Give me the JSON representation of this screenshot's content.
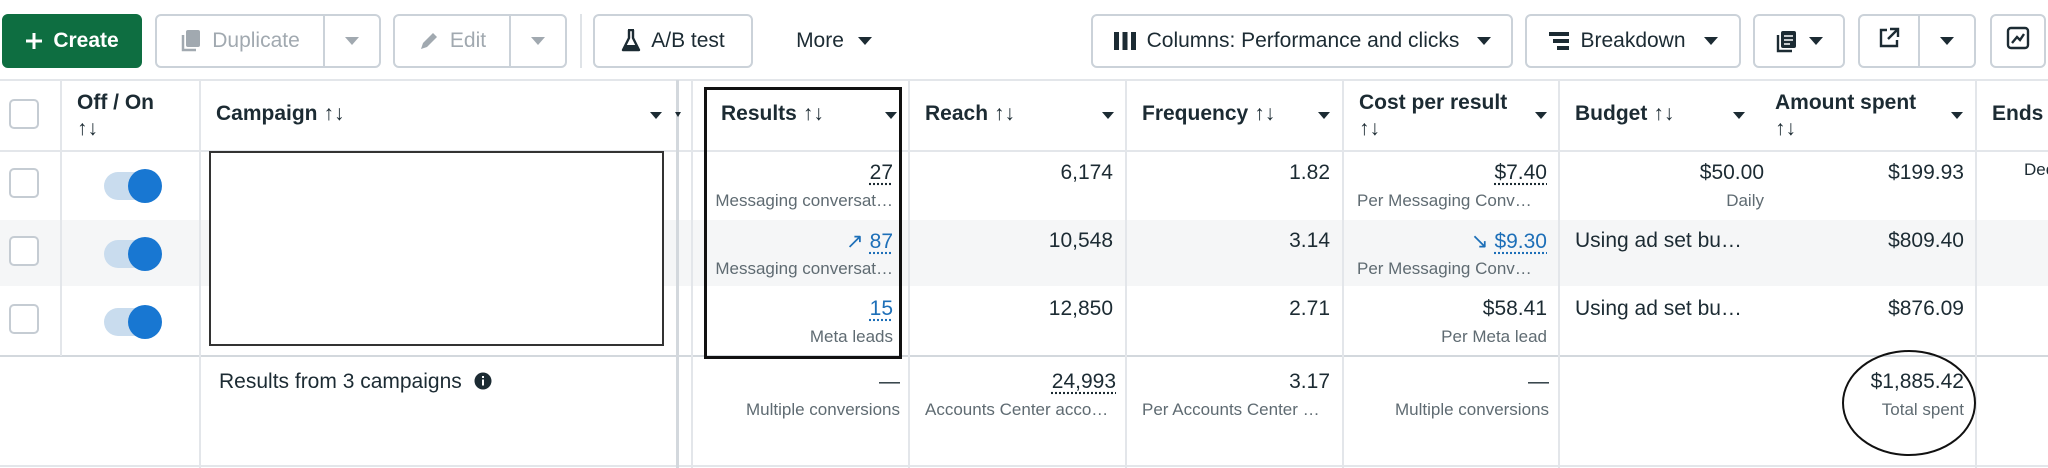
{
  "toolbar": {
    "create_label": "Create",
    "duplicate_label": "Duplicate",
    "edit_label": "Edit",
    "ab_test_label": "A/B test",
    "more_label": "More",
    "columns_label": "Columns: Performance and clicks",
    "breakdown_label": "Breakdown"
  },
  "headers": {
    "off_on": "Off / On",
    "campaign": "Campaign",
    "results": "Results",
    "reach": "Reach",
    "frequency": "Frequency",
    "cost_per_result": "Cost per result",
    "budget": "Budget",
    "amount_spent": "Amount spent",
    "ends": "Ends",
    "sort_arrows": "↑↓"
  },
  "rows": [
    {
      "toggle_on": true,
      "results": "27",
      "results_sub": "Messaging conversat…",
      "results_trend": "",
      "reach": "6,174",
      "frequency": "1.82",
      "cost": "$7.40",
      "cost_sub": "Per Messaging Conv…",
      "cost_trend": "",
      "budget": "$50.00",
      "budget_sub": "Daily",
      "amount": "$199.93",
      "ends": "Dec"
    },
    {
      "toggle_on": true,
      "results": "87",
      "results_sub": "Messaging conversat…",
      "results_trend": "↗",
      "reach": "10,548",
      "frequency": "3.14",
      "cost": "$9.30",
      "cost_sub": "Per Messaging Conv…",
      "cost_trend": "↘",
      "budget": "Using ad set bu…",
      "budget_sub": "",
      "amount": "$809.40",
      "ends": ""
    },
    {
      "toggle_on": true,
      "results": "15",
      "results_sub": "Meta leads",
      "results_trend": "",
      "reach": "12,850",
      "frequency": "2.71",
      "cost": "$58.41",
      "cost_sub": "Per Meta lead",
      "cost_trend": "",
      "budget": "Using ad set bu…",
      "budget_sub": "",
      "amount": "$876.09",
      "ends": ""
    }
  ],
  "summary": {
    "label": "Results from 3 campaigns",
    "results": "—",
    "results_sub": "Multiple conversions",
    "reach": "24,993",
    "reach_sub": "Accounts Center acco…",
    "frequency": "3.17",
    "frequency_sub": "Per Accounts Center …",
    "cost": "—",
    "cost_sub": "Multiple conversions",
    "amount": "$1,885.42",
    "amount_sub": "Total spent"
  },
  "colors": {
    "primary": "#0e6e41",
    "link": "#1d6fb8",
    "toggle_on": "#1877d2"
  }
}
